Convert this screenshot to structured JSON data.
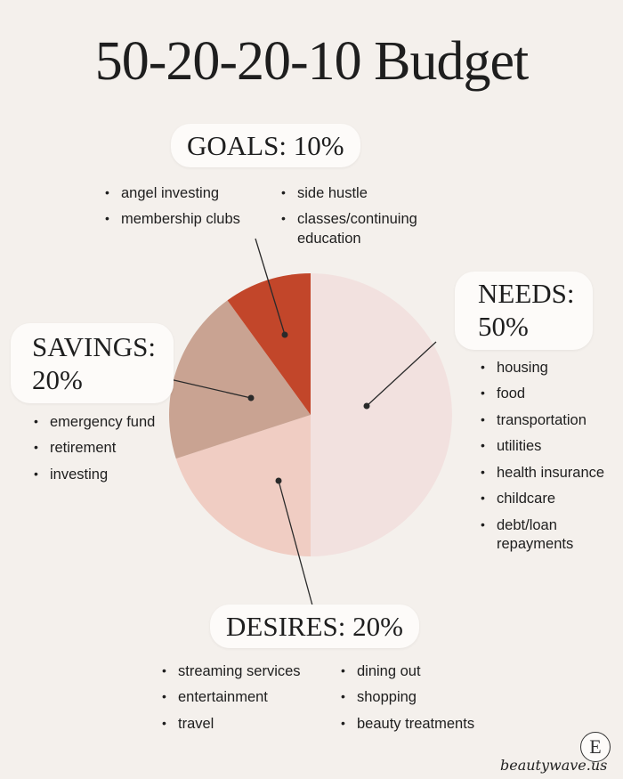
{
  "title": "50-20-20-10 Budget",
  "chart_data": {
    "type": "pie",
    "slices": [
      {
        "label": "NEEDS: 50%",
        "value": 50,
        "color": "#f2e1df"
      },
      {
        "label": "DESIRES: 20%",
        "value": 20,
        "color": "#f0cdc3"
      },
      {
        "label": "SAVINGS: 20%",
        "value": 20,
        "color": "#c9a392"
      },
      {
        "label": "GOALS: 10%",
        "value": 10,
        "color": "#c2462a"
      }
    ]
  },
  "labels": {
    "goals": "GOALS: 10%",
    "needs_line1": "NEEDS:",
    "needs_line2": "50%",
    "savings_line1": "SAVINGS:",
    "savings_line2": "20%",
    "desires": "DESIRES: 20%"
  },
  "lists": {
    "goals_col1": [
      "angel investing",
      "membership clubs"
    ],
    "goals_col2": [
      "side hustle",
      "classes/continuing education"
    ],
    "needs": [
      "housing",
      "food",
      "transportation",
      "utilities",
      "health insurance",
      "childcare",
      "debt/loan repayments"
    ],
    "savings": [
      "emergency fund",
      "retirement",
      "investing"
    ],
    "desires_col1": [
      "streaming services",
      "entertainment",
      "travel"
    ],
    "desires_col2": [
      "dining out",
      "shopping",
      "beauty treatments"
    ]
  },
  "logo_letter": "E",
  "watermark": "beautywave.us"
}
